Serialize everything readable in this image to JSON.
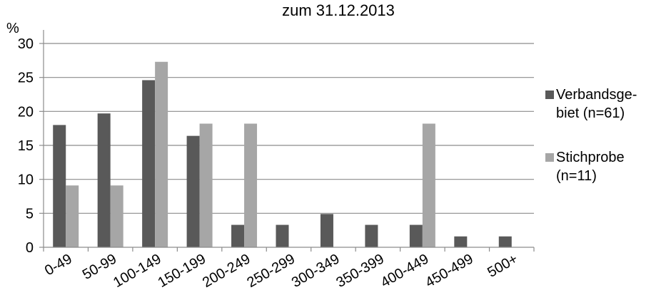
{
  "chart_data": {
    "type": "bar",
    "title": "zum 31.12.2013",
    "ylabel": "%",
    "xlabel": "",
    "ylim": [
      0,
      30
    ],
    "yticks": [
      0,
      5,
      10,
      15,
      20,
      25,
      30
    ],
    "grid": true,
    "legend_position": "right",
    "categories": [
      "0-49",
      "50-99",
      "100-149",
      "150-199",
      "200-249",
      "250-299",
      "300-349",
      "350-399",
      "400-449",
      "450-499",
      "500+"
    ],
    "series": [
      {
        "name": "Verbandsge-biet (n=61)",
        "legend_lines": [
          "Verbandsge-",
          "biet (n=61)"
        ],
        "color": "#595959",
        "values": [
          18.0,
          19.7,
          24.6,
          16.4,
          3.3,
          3.3,
          4.9,
          3.3,
          3.3,
          1.6,
          1.6
        ]
      },
      {
        "name": "Stichprobe (n=11)",
        "legend_lines": [
          "Stichprobe",
          "(n=11)"
        ],
        "color": "#a6a6a6",
        "values": [
          9.1,
          9.1,
          27.3,
          18.2,
          18.2,
          0,
          0,
          0,
          18.2,
          0,
          0
        ]
      }
    ]
  }
}
